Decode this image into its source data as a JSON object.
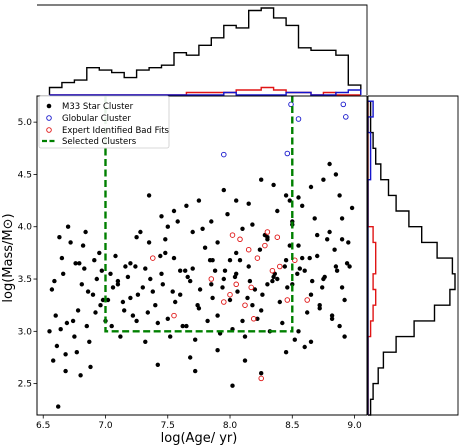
{
  "chart_data": {
    "type": "scatter",
    "xlabel": "log(Age/ yr)",
    "ylabel": "log(Mass/M⊙)",
    "xlim": [
      6.45,
      9.1
    ],
    "ylim": [
      2.2,
      5.25
    ],
    "xticks": [
      "6.5",
      "7.0",
      "7.5",
      "8.0",
      "8.5",
      "9.0"
    ],
    "yticks": [
      "2.5",
      "3.0",
      "3.5",
      "4.0",
      "4.5",
      "5.0"
    ],
    "grid": false,
    "legend_position": "top-left",
    "colors": {
      "m33": "#000000",
      "globular": "#1515cc",
      "bad_fits": "#e01515",
      "selection": "#008000"
    },
    "selection_box": {
      "age": [
        7.0,
        8.5
      ],
      "mass": [
        3.0,
        5.25
      ]
    },
    "series": [
      {
        "name": "M33 Star Cluster",
        "style": "filled-circle",
        "x": [
          6.62,
          6.55,
          6.58,
          6.6,
          6.57,
          6.66,
          6.68,
          6.65,
          6.72,
          6.75,
          6.8,
          6.78,
          6.83,
          6.85,
          6.9,
          6.88,
          6.93,
          6.96,
          6.7,
          6.74,
          6.81,
          6.87,
          6.95,
          6.98,
          6.63,
          6.69,
          6.76,
          6.84,
          6.92,
          6.59,
          6.77,
          6.86,
          6.91,
          6.64,
          6.97,
          7.02,
          7.05,
          7.1,
          7.15,
          7.2,
          7.25,
          7.3,
          7.35,
          7.4,
          7.45,
          7.5,
          7.55,
          7.6,
          7.65,
          7.7,
          7.75,
          7.8,
          7.85,
          7.9,
          7.95,
          8.0,
          8.05,
          8.1,
          8.15,
          8.2,
          8.25,
          8.3,
          8.35,
          8.4,
          8.45,
          8.5,
          8.55,
          8.6,
          8.65,
          8.7,
          8.75,
          8.8,
          8.85,
          8.9,
          8.95,
          7.08,
          7.18,
          7.28,
          7.38,
          7.48,
          7.58,
          7.68,
          7.78,
          7.88,
          7.98,
          8.08,
          8.18,
          8.28,
          8.38,
          8.48,
          8.58,
          8.68,
          8.78,
          8.88,
          8.98,
          7.12,
          7.22,
          7.32,
          7.42,
          7.52,
          7.62,
          7.72,
          7.82,
          7.92,
          8.02,
          8.12,
          8.22,
          8.32,
          8.42,
          8.52,
          8.62,
          8.72,
          8.82,
          8.92,
          7.04,
          7.14,
          7.24,
          7.34,
          7.44,
          7.54,
          7.64,
          7.74,
          7.84,
          7.94,
          8.04,
          8.14,
          8.24,
          8.34,
          8.44,
          8.54,
          8.64,
          8.74,
          8.84,
          8.94,
          7.06,
          7.16,
          7.26,
          7.36,
          7.46,
          7.56,
          7.66,
          7.76,
          7.86,
          7.96,
          8.06,
          8.16,
          8.26,
          8.36,
          8.46,
          8.56,
          8.66,
          8.76,
          8.86,
          8.96,
          7.35,
          7.55,
          7.75,
          7.95,
          8.15,
          8.35,
          8.55,
          8.75,
          7.45,
          7.65,
          7.85,
          8.05,
          8.25,
          8.45,
          8.65,
          8.85,
          7.25,
          7.5,
          7.7,
          7.9,
          8.1,
          8.3,
          8.5,
          8.7,
          8.9,
          6.82,
          6.79,
          8.45,
          8.55,
          8.65,
          8.82,
          8.88,
          8.92,
          8.72,
          8.6,
          8.25,
          8.12,
          7.9,
          7.68,
          7.42,
          7.6,
          8.0,
          8.3,
          8.58,
          8.9,
          6.68,
          6.61,
          7.32,
          7.48,
          7.2,
          7.86,
          8.18,
          8.38,
          7.1,
          7.0,
          8.02,
          7.72,
          8.5,
          8.05,
          8.8,
          8.48
        ],
        "y": [
          2.28,
          3.0,
          2.72,
          3.15,
          3.4,
          3.55,
          2.62,
          3.7,
          3.85,
          2.95,
          2.58,
          3.2,
          3.6,
          3.05,
          3.35,
          2.66,
          3.5,
          3.25,
          4.0,
          3.1,
          3.45,
          2.9,
          3.75,
          3.3,
          3.9,
          3.08,
          3.65,
          3.95,
          3.18,
          3.48,
          2.8,
          3.38,
          3.68,
          3.02,
          3.58,
          3.3,
          3.05,
          3.48,
          3.2,
          3.65,
          3.1,
          3.42,
          3.85,
          3.25,
          3.55,
          3.12,
          3.7,
          3.35,
          3.05,
          3.6,
          3.22,
          3.8,
          3.45,
          3.15,
          3.5,
          3.3,
          3.75,
          3.1,
          3.62,
          3.4,
          3.2,
          3.9,
          3.52,
          3.28,
          3.68,
          3.45,
          3.82,
          3.58,
          3.35,
          3.72,
          3.5,
          3.95,
          3.62,
          3.42,
          3.85,
          3.72,
          3.52,
          3.95,
          3.38,
          3.88,
          4.05,
          3.48,
          3.98,
          3.58,
          4.12,
          3.68,
          4.02,
          3.92,
          4.15,
          3.82,
          4.2,
          4.08,
          3.88,
          4.3,
          4.18,
          2.95,
          3.15,
          2.9,
          3.08,
          2.95,
          3.05,
          2.92,
          3.1,
          2.98,
          3.02,
          2.95,
          3.12,
          3.0,
          3.08,
          2.92,
          3.18,
          3.25,
          3.12,
          3.3,
          3.55,
          3.28,
          3.62,
          3.18,
          3.72,
          3.38,
          3.58,
          3.25,
          3.68,
          3.42,
          3.52,
          3.32,
          3.78,
          3.48,
          3.62,
          3.55,
          3.7,
          3.42,
          3.78,
          3.65,
          3.42,
          3.62,
          3.35,
          3.5,
          3.45,
          3.28,
          3.52,
          3.4,
          3.32,
          3.58,
          3.38,
          3.48,
          3.35,
          3.55,
          3.42,
          3.6,
          3.48,
          3.52,
          3.58,
          3.62,
          4.3,
          4.15,
          4.25,
          4.35,
          4.22,
          4.4,
          4.28,
          4.45,
          4.1,
          4.2,
          4.05,
          4.25,
          4.45,
          4.3,
          4.38,
          4.5,
          3.9,
          4.0,
          3.95,
          3.85,
          3.98,
          3.88,
          4.02,
          3.92,
          4.08,
          3.82,
          3.65,
          2.8,
          3.0,
          2.9,
          3.15,
          3.05,
          2.95,
          3.22,
          2.85,
          2.6,
          2.72,
          2.82,
          2.75,
          2.68,
          3.58,
          3.68,
          3.45,
          3.7,
          3.88,
          2.78,
          2.86,
          3.6,
          3.75,
          3.32,
          3.68,
          3.25,
          3.5,
          3.45,
          3.1,
          2.48,
          2.62,
          4.05,
          3.55,
          4.6,
          4.25
        ]
      },
      {
        "name": "Globular Cluster",
        "style": "open-circle",
        "x": [
          7.95,
          8.49,
          8.55,
          8.91,
          8.93,
          8.46
        ],
        "y": [
          4.69,
          5.17,
          5.03,
          5.17,
          5.05,
          4.7
        ]
      },
      {
        "name": "Expert Identified Bad Fits",
        "style": "open-circle",
        "x": [
          7.38,
          7.55,
          7.85,
          8.02,
          8.08,
          8.12,
          8.17,
          8.22,
          8.28,
          8.34,
          8.4,
          8.46,
          7.95,
          8.19,
          8.3,
          8.52,
          8.62,
          8.25,
          8.15,
          8.05,
          8.0,
          8.38
        ],
        "y": [
          3.7,
          3.15,
          3.5,
          3.92,
          3.88,
          3.25,
          3.42,
          3.7,
          3.82,
          3.58,
          3.62,
          3.3,
          3.28,
          3.12,
          3.95,
          3.68,
          3.3,
          2.55,
          3.78,
          3.45,
          3.35,
          3.9
        ]
      }
    ],
    "selection_label": "Selected Clusters",
    "top_histogram": {
      "variable": "log(Age/ yr)",
      "bins": [
        6.55,
        6.65,
        6.75,
        6.85,
        6.95,
        7.05,
        7.15,
        7.25,
        7.35,
        7.45,
        7.55,
        7.65,
        7.75,
        7.85,
        7.95,
        8.05,
        8.15,
        8.25,
        8.35,
        8.45,
        8.55,
        8.65,
        8.75,
        8.85,
        8.95,
        9.05
      ],
      "all": [
        3,
        5,
        6,
        11,
        10,
        9,
        7,
        10,
        11,
        12,
        17,
        16,
        20,
        23,
        28,
        27,
        34,
        35,
        31,
        28,
        19,
        18,
        18,
        16,
        4
      ],
      "bad_fits": [
        0,
        0,
        0,
        0,
        0,
        0,
        0,
        0,
        0,
        0,
        0,
        1,
        1,
        1,
        1,
        2,
        2,
        3,
        2,
        1,
        1,
        0,
        1,
        0,
        0
      ],
      "globular": [
        0,
        0,
        0,
        0,
        0,
        0,
        0,
        0,
        0,
        0,
        0,
        0,
        0,
        0,
        1,
        0,
        0,
        0,
        0,
        1,
        1,
        0,
        0,
        1,
        2
      ]
    },
    "right_histogram": {
      "variable": "log(Mass/M⊙)",
      "bins": [
        2.2,
        2.35,
        2.5,
        2.65,
        2.8,
        2.95,
        3.1,
        3.25,
        3.4,
        3.55,
        3.7,
        3.85,
        4.0,
        4.15,
        4.3,
        4.45,
        4.6,
        4.75,
        4.9,
        5.05,
        5.2
      ],
      "all": [
        1,
        2,
        4,
        6,
        11,
        18,
        26,
        32,
        34,
        33,
        27,
        21,
        16,
        11,
        8,
        5,
        3,
        2,
        1,
        1
      ],
      "bad_fits": [
        0,
        0,
        0,
        0,
        0,
        1,
        2,
        3,
        2,
        3,
        3,
        2,
        0,
        0,
        0,
        0,
        0,
        0,
        0,
        0
      ],
      "globular": [
        0,
        0,
        0,
        0,
        0,
        0,
        0,
        0,
        0,
        0,
        0,
        0,
        0,
        0,
        0,
        1,
        1,
        1,
        0,
        2
      ]
    }
  }
}
